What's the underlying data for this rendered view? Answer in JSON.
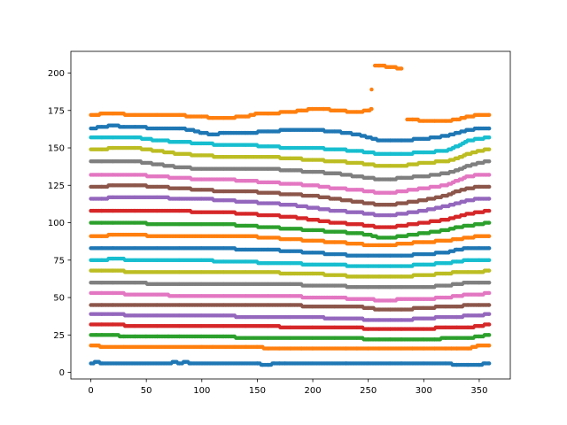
{
  "chart_data": {
    "type": "scatter",
    "title": "",
    "xlabel": "",
    "ylabel": "",
    "xlim": [
      -18,
      378
    ],
    "ylim": [
      -4.4,
      214.5
    ],
    "xticks": [
      0,
      50,
      100,
      150,
      200,
      250,
      300,
      350
    ],
    "yticks": [
      0,
      25,
      50,
      75,
      100,
      125,
      150,
      175,
      200
    ],
    "grid": false,
    "legend": "none",
    "series": [
      {
        "color": "#1f77b4",
        "x": [
          0,
          5,
          10,
          40,
          70,
          75,
          80,
          85,
          90,
          120,
          150,
          155,
          160,
          165,
          170,
          175,
          200,
          230,
          250,
          270,
          280,
          300,
          320,
          330,
          340,
          350,
          355,
          359
        ],
        "y": [
          6,
          7,
          6,
          6,
          6,
          7,
          6,
          7,
          6,
          6,
          6,
          5,
          5,
          6,
          6,
          6,
          6,
          6,
          6,
          6,
          6,
          6,
          6,
          5,
          5,
          5,
          6,
          6
        ]
      },
      {
        "color": "#ff7f0e",
        "x": [
          0,
          5,
          10,
          30,
          60,
          90,
          100,
          110,
          130,
          140,
          150,
          160,
          170,
          180,
          190,
          200,
          230,
          240,
          250,
          260,
          280,
          290,
          300,
          310,
          320,
          325,
          330,
          340,
          350,
          359
        ],
        "y": [
          18,
          18,
          17,
          17,
          17,
          17,
          17,
          17,
          17,
          17,
          17,
          16,
          16,
          16,
          16,
          16,
          16,
          16,
          16,
          16,
          16,
          16,
          16,
          16,
          16,
          16,
          16,
          16,
          18,
          18
        ]
      },
      {
        "color": "#2ca02c",
        "x": [
          0,
          5,
          10,
          20,
          30,
          40,
          50,
          60,
          70,
          80,
          100,
          120,
          140,
          160,
          180,
          200,
          220,
          240,
          250,
          260,
          270,
          280,
          300,
          310,
          320,
          330,
          340,
          350,
          359
        ],
        "y": [
          25,
          25,
          25,
          25,
          24,
          24,
          24,
          24,
          24,
          24,
          24,
          24,
          23,
          23,
          23,
          23,
          23,
          23,
          22,
          22,
          22,
          22,
          22,
          22,
          23,
          23,
          23,
          24,
          25
        ]
      },
      {
        "color": "#d62728",
        "x": [
          0,
          10,
          20,
          40,
          60,
          80,
          100,
          120,
          140,
          160,
          180,
          200,
          220,
          240,
          250,
          260,
          270,
          280,
          300,
          320,
          330,
          340,
          350,
          359
        ],
        "y": [
          32,
          32,
          32,
          31,
          31,
          31,
          31,
          31,
          31,
          31,
          30,
          30,
          30,
          30,
          29,
          29,
          29,
          29,
          29,
          30,
          30,
          30,
          31,
          32
        ]
      },
      {
        "color": "#9467bd",
        "x": [
          0,
          10,
          20,
          40,
          60,
          80,
          100,
          120,
          140,
          160,
          180,
          200,
          220,
          240,
          250,
          260,
          270,
          280,
          300,
          320,
          330,
          340,
          350,
          359
        ],
        "y": [
          39,
          39,
          39,
          38,
          38,
          38,
          38,
          38,
          37,
          37,
          37,
          37,
          36,
          36,
          35,
          35,
          35,
          35,
          36,
          37,
          37,
          38,
          38,
          39
        ]
      },
      {
        "color": "#8c564b",
        "x": [
          0,
          10,
          20,
          40,
          60,
          80,
          100,
          120,
          140,
          160,
          180,
          200,
          220,
          240,
          250,
          260,
          270,
          280,
          300,
          320,
          330,
          340,
          350,
          359
        ],
        "y": [
          45,
          45,
          45,
          45,
          45,
          45,
          45,
          45,
          45,
          45,
          45,
          44,
          44,
          44,
          43,
          42,
          42,
          42,
          43,
          44,
          44,
          45,
          45,
          45
        ]
      },
      {
        "color": "#e377c2",
        "x": [
          0,
          10,
          20,
          40,
          60,
          80,
          100,
          120,
          140,
          160,
          180,
          200,
          220,
          240,
          250,
          260,
          270,
          280,
          300,
          320,
          330,
          340,
          350,
          359
        ],
        "y": [
          53,
          53,
          53,
          52,
          52,
          51,
          51,
          51,
          51,
          51,
          51,
          50,
          50,
          49,
          49,
          48,
          48,
          49,
          49,
          50,
          51,
          52,
          52,
          53
        ]
      },
      {
        "color": "#7f7f7f",
        "x": [
          0,
          10,
          20,
          40,
          60,
          80,
          100,
          120,
          140,
          160,
          180,
          200,
          220,
          240,
          250,
          260,
          270,
          280,
          300,
          320,
          330,
          340,
          350,
          359
        ],
        "y": [
          60,
          60,
          60,
          60,
          59,
          59,
          59,
          59,
          59,
          59,
          59,
          58,
          58,
          57,
          57,
          57,
          57,
          57,
          57,
          58,
          59,
          60,
          60,
          60
        ]
      },
      {
        "color": "#bcbd22",
        "x": [
          0,
          10,
          20,
          40,
          60,
          80,
          100,
          120,
          140,
          160,
          180,
          200,
          220,
          240,
          250,
          260,
          270,
          280,
          300,
          320,
          330,
          340,
          350,
          359
        ],
        "y": [
          68,
          68,
          68,
          67,
          67,
          67,
          67,
          67,
          67,
          67,
          66,
          66,
          65,
          64,
          64,
          64,
          64,
          64,
          65,
          66,
          67,
          67,
          67,
          68
        ]
      },
      {
        "color": "#17becf",
        "x": [
          0,
          10,
          20,
          40,
          60,
          80,
          100,
          120,
          140,
          160,
          180,
          200,
          220,
          240,
          250,
          260,
          270,
          280,
          300,
          320,
          330,
          340,
          350,
          359
        ],
        "y": [
          75,
          75,
          76,
          75,
          75,
          75,
          75,
          74,
          74,
          73,
          73,
          72,
          72,
          71,
          71,
          71,
          71,
          71,
          72,
          73,
          74,
          75,
          75,
          75
        ]
      },
      {
        "color": "#1f77b4",
        "x": [
          0,
          10,
          20,
          40,
          60,
          80,
          100,
          120,
          140,
          160,
          180,
          200,
          220,
          240,
          250,
          260,
          270,
          280,
          300,
          320,
          330,
          340,
          350,
          359
        ],
        "y": [
          83,
          83,
          83,
          83,
          83,
          83,
          83,
          83,
          82,
          82,
          81,
          80,
          79,
          78,
          78,
          78,
          78,
          78,
          79,
          80,
          82,
          83,
          83,
          83
        ]
      },
      {
        "color": "#ff7f0e",
        "x": [
          0,
          10,
          20,
          40,
          60,
          80,
          100,
          120,
          140,
          160,
          180,
          200,
          220,
          240,
          250,
          260,
          270,
          280,
          300,
          320,
          330,
          340,
          350,
          359
        ],
        "y": [
          91,
          91,
          92,
          92,
          91,
          91,
          91,
          91,
          91,
          90,
          89,
          88,
          87,
          86,
          85,
          85,
          85,
          86,
          87,
          88,
          89,
          90,
          91,
          91
        ]
      },
      {
        "color": "#2ca02c",
        "x": [
          0,
          10,
          20,
          40,
          60,
          80,
          100,
          120,
          140,
          160,
          180,
          200,
          220,
          240,
          250,
          260,
          270,
          280,
          300,
          320,
          330,
          340,
          350,
          359
        ],
        "y": [
          100,
          100,
          100,
          100,
          99,
          99,
          99,
          99,
          98,
          97,
          96,
          95,
          94,
          93,
          92,
          90,
          90,
          91,
          93,
          95,
          97,
          98,
          99,
          100
        ]
      },
      {
        "color": "#d62728",
        "x": [
          0,
          10,
          20,
          40,
          60,
          80,
          100,
          120,
          140,
          160,
          180,
          200,
          220,
          240,
          250,
          260,
          270,
          280,
          300,
          320,
          330,
          340,
          350,
          359
        ],
        "y": [
          108,
          108,
          108,
          108,
          108,
          108,
          107,
          107,
          106,
          105,
          104,
          102,
          100,
          99,
          98,
          97,
          97,
          98,
          100,
          102,
          104,
          106,
          107,
          108
        ]
      },
      {
        "color": "#9467bd",
        "x": [
          0,
          10,
          20,
          40,
          60,
          80,
          100,
          120,
          140,
          160,
          180,
          200,
          220,
          240,
          250,
          260,
          270,
          280,
          300,
          320,
          330,
          340,
          350,
          359
        ],
        "y": [
          116,
          116,
          117,
          117,
          117,
          116,
          116,
          115,
          114,
          113,
          112,
          110,
          108,
          107,
          106,
          105,
          105,
          106,
          108,
          111,
          113,
          115,
          116,
          116
        ]
      },
      {
        "color": "#8c564b",
        "x": [
          0,
          10,
          20,
          40,
          60,
          80,
          100,
          120,
          140,
          160,
          180,
          200,
          220,
          240,
          250,
          260,
          270,
          280,
          300,
          320,
          330,
          340,
          350,
          359
        ],
        "y": [
          124,
          124,
          125,
          125,
          124,
          123,
          122,
          121,
          121,
          120,
          119,
          118,
          116,
          114,
          113,
          112,
          112,
          113,
          115,
          118,
          121,
          123,
          124,
          124
        ]
      },
      {
        "color": "#e377c2",
        "x": [
          0,
          10,
          20,
          40,
          60,
          80,
          100,
          120,
          140,
          160,
          180,
          200,
          220,
          240,
          250,
          260,
          270,
          280,
          300,
          320,
          330,
          340,
          350,
          359
        ],
        "y": [
          132,
          132,
          132,
          132,
          131,
          130,
          129,
          129,
          128,
          127,
          126,
          125,
          123,
          122,
          121,
          120,
          120,
          121,
          123,
          125,
          128,
          131,
          132,
          132
        ]
      },
      {
        "color": "#7f7f7f",
        "x": [
          0,
          10,
          20,
          40,
          60,
          80,
          100,
          120,
          140,
          160,
          180,
          200,
          220,
          240,
          250,
          260,
          270,
          280,
          300,
          320,
          330,
          340,
          350,
          359
        ],
        "y": [
          141,
          141,
          141,
          141,
          139,
          137,
          136,
          136,
          136,
          136,
          135,
          134,
          133,
          131,
          130,
          129,
          129,
          130,
          131,
          133,
          135,
          138,
          140,
          141
        ]
      },
      {
        "color": "#bcbd22",
        "x": [
          0,
          10,
          20,
          40,
          60,
          80,
          100,
          120,
          140,
          160,
          180,
          200,
          220,
          240,
          250,
          260,
          270,
          280,
          300,
          320,
          330,
          340,
          350,
          359
        ],
        "y": [
          149,
          149,
          150,
          150,
          148,
          146,
          145,
          144,
          144,
          144,
          143,
          142,
          141,
          140,
          139,
          138,
          138,
          138,
          140,
          141,
          143,
          146,
          148,
          149
        ]
      },
      {
        "color": "#17becf",
        "x": [
          0,
          10,
          20,
          40,
          60,
          80,
          100,
          120,
          140,
          160,
          180,
          200,
          220,
          240,
          250,
          260,
          270,
          280,
          300,
          320,
          330,
          340,
          350,
          359
        ],
        "y": [
          157,
          157,
          157,
          157,
          155,
          154,
          153,
          152,
          152,
          151,
          150,
          150,
          149,
          148,
          147,
          146,
          146,
          146,
          147,
          148,
          151,
          155,
          156,
          157
        ]
      },
      {
        "color": "#1f77b4",
        "x": [
          0,
          10,
          20,
          30,
          40,
          60,
          80,
          90,
          100,
          110,
          120,
          140,
          160,
          180,
          200,
          220,
          240,
          250,
          260,
          270,
          280,
          300,
          310,
          320,
          330,
          340,
          350,
          359
        ],
        "y": [
          163,
          164,
          165,
          164,
          164,
          163,
          163,
          162,
          160,
          159,
          160,
          160,
          161,
          162,
          162,
          161,
          159,
          157,
          155,
          155,
          155,
          156,
          157,
          158,
          160,
          162,
          163,
          163
        ]
      },
      {
        "color": "#ff7f0e",
        "x": [
          0,
          5,
          10,
          20,
          40,
          60,
          80,
          90,
          100,
          110,
          120,
          140,
          150,
          160,
          180,
          190,
          200,
          210,
          220,
          240,
          250,
          253,
          253,
          256,
          260,
          270,
          280,
          285,
          290,
          300,
          310,
          320,
          330,
          340,
          350,
          359
        ],
        "y": [
          172,
          172,
          173,
          173,
          172,
          172,
          172,
          171,
          171,
          170,
          170,
          171,
          173,
          173,
          174,
          175,
          176,
          176,
          175,
          174,
          175,
          176,
          189,
          205,
          205,
          204,
          203,
          169,
          169,
          168,
          168,
          168,
          169,
          171,
          172,
          172
        ]
      }
    ]
  }
}
